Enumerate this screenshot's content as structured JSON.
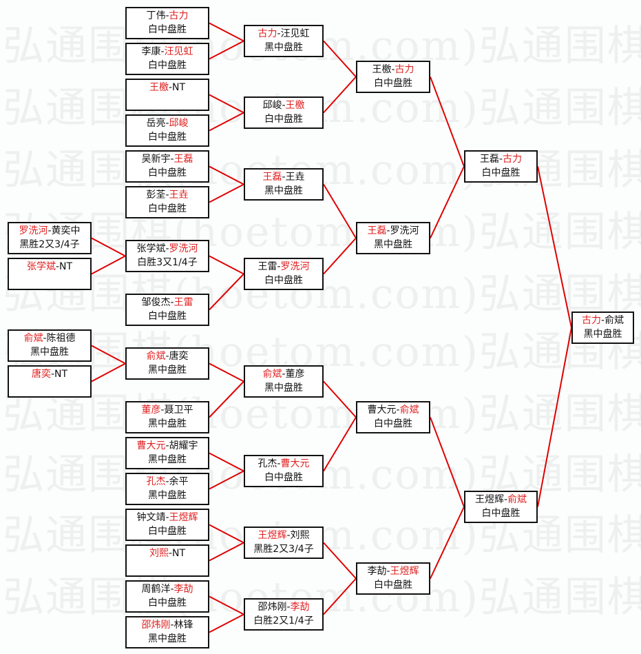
{
  "watermark": "弘通围棋(hoetom.com)弘通围棋",
  "colors": {
    "winner": "#e02020",
    "line": "#e00000",
    "border": "#111111"
  },
  "matches": [
    {
      "id": "m1",
      "p1": "丁伟",
      "p2": "古力",
      "winner": 2,
      "result": "白中盘胜",
      "next": "m21"
    },
    {
      "id": "m2",
      "p1": "李康",
      "p2": "汪见虹",
      "winner": 2,
      "result": "白中盘胜",
      "next": "m21"
    },
    {
      "id": "m3",
      "p1": "王檄",
      "p2": "NT",
      "winner": 1,
      "result": "",
      "next": "m22"
    },
    {
      "id": "m4",
      "p1": "岳亮",
      "p2": "邱峻",
      "winner": 2,
      "result": "白中盘胜",
      "next": "m22"
    },
    {
      "id": "m5a",
      "p1": "吴新宇",
      "p2": "王磊",
      "winner": 2,
      "result": "白中盘胜",
      "next": "m23"
    },
    {
      "id": "m6",
      "p1": "彭荃",
      "p2": "王垚",
      "winner": 2,
      "result": "白中盘胜",
      "next": "m23"
    },
    {
      "id": "c1",
      "p1": "罗洗河",
      "p2": "黄奕中",
      "winner": 1,
      "result": "黑胜2又3/4子",
      "next": "m7"
    },
    {
      "id": "c2",
      "p1": "张学斌",
      "p2": "NT",
      "winner": 1,
      "result": "",
      "next": "m7"
    },
    {
      "id": "m7",
      "p1": "张学斌",
      "p2": "罗洗河",
      "winner": 2,
      "result": "白胜3又1/4子",
      "next": "m24"
    },
    {
      "id": "m8",
      "p1": "邹俊杰",
      "p2": "王雷",
      "winner": 2,
      "result": "白中盘胜",
      "next": "m24"
    },
    {
      "id": "c3",
      "p1": "俞斌",
      "p2": "陈祖德",
      "winner": 1,
      "result": "黑中盘胜",
      "next": "m9"
    },
    {
      "id": "c4",
      "p1": "唐奕",
      "p2": "NT",
      "winner": 1,
      "result": "",
      "next": "m9"
    },
    {
      "id": "m9",
      "p1": "俞斌",
      "p2": "唐奕",
      "winner": 1,
      "result": "黑中盘胜",
      "next": "m25"
    },
    {
      "id": "m10",
      "p1": "董彦",
      "p2": "聂卫平",
      "winner": 1,
      "result": "黑中盘胜",
      "next": "m25"
    },
    {
      "id": "m11",
      "p1": "曹大元",
      "p2": "胡耀宇",
      "winner": 1,
      "result": "黑中盘胜",
      "next": "m26"
    },
    {
      "id": "m12",
      "p1": "孔杰",
      "p2": "余平",
      "winner": 1,
      "result": "黑中盘胜",
      "next": "m26"
    },
    {
      "id": "m13",
      "p1": "钟文靖",
      "p2": "王煜辉",
      "winner": 2,
      "result": "白中盘胜",
      "next": "m27"
    },
    {
      "id": "m14",
      "p1": "刘熙",
      "p2": "NT",
      "winner": 1,
      "result": "",
      "next": "m27"
    },
    {
      "id": "m15",
      "p1": "周鹤洋",
      "p2": "李劼",
      "winner": 2,
      "result": "白中盘胜",
      "next": "m28"
    },
    {
      "id": "m16",
      "p1": "邵炜刚",
      "p2": "林锋",
      "winner": 1,
      "result": "黑中盘胜",
      "next": "m28"
    },
    {
      "id": "m21",
      "p1": "古力",
      "p2": "汪见虹",
      "winner": 1,
      "result": "黑中盘胜",
      "next": "m31"
    },
    {
      "id": "m22",
      "p1": "邱峻",
      "p2": "王檄",
      "winner": 2,
      "result": "白中盘胜",
      "next": "m31"
    },
    {
      "id": "m23",
      "p1": "王磊",
      "p2": "王垚",
      "winner": 1,
      "result": "黑中盘胜",
      "next": "m32"
    },
    {
      "id": "m24",
      "p1": "王雷",
      "p2": "罗洗河",
      "winner": 2,
      "result": "白中盘胜",
      "next": "m32"
    },
    {
      "id": "m25",
      "p1": "俞斌",
      "p2": "董彦",
      "winner": 1,
      "result": "黑中盘胜",
      "next": "m33"
    },
    {
      "id": "m26",
      "p1": "孔杰",
      "p2": "曹大元",
      "winner": 2,
      "result": "白中盘胜",
      "next": "m33"
    },
    {
      "id": "m27",
      "p1": "王煜辉",
      "p2": "刘熙",
      "winner": 1,
      "result": "黑胜2又3/4子",
      "next": "m34"
    },
    {
      "id": "m28",
      "p1": "邵炜刚",
      "p2": "李劼",
      "winner": 2,
      "result": "白胜2又1/4子",
      "next": "m34"
    },
    {
      "id": "m31",
      "p1": "王檄",
      "p2": "古力",
      "winner": 2,
      "result": "白中盘胜",
      "next": "m41"
    },
    {
      "id": "m32",
      "p1": "王磊",
      "p2": "罗洗河",
      "winner": 1,
      "result": "黑中盘胜",
      "next": "m41"
    },
    {
      "id": "m33",
      "p1": "曹大元",
      "p2": "俞斌",
      "winner": 2,
      "result": "白中盘胜",
      "next": "m42"
    },
    {
      "id": "m34",
      "p1": "李劼",
      "p2": "王煜辉",
      "winner": 2,
      "result": "白中盘胜",
      "next": "m42"
    },
    {
      "id": "m41",
      "p1": "王磊",
      "p2": "古力",
      "winner": 2,
      "result": "白中盘胜",
      "next": "final"
    },
    {
      "id": "m42",
      "p1": "王煜辉",
      "p2": "俞斌",
      "winner": 2,
      "result": "白中盘胜",
      "next": "final"
    },
    {
      "id": "final",
      "p1": "古力",
      "p2": "俞斌",
      "winner": 1,
      "result": "黑中盘胜",
      "next": null
    }
  ]
}
